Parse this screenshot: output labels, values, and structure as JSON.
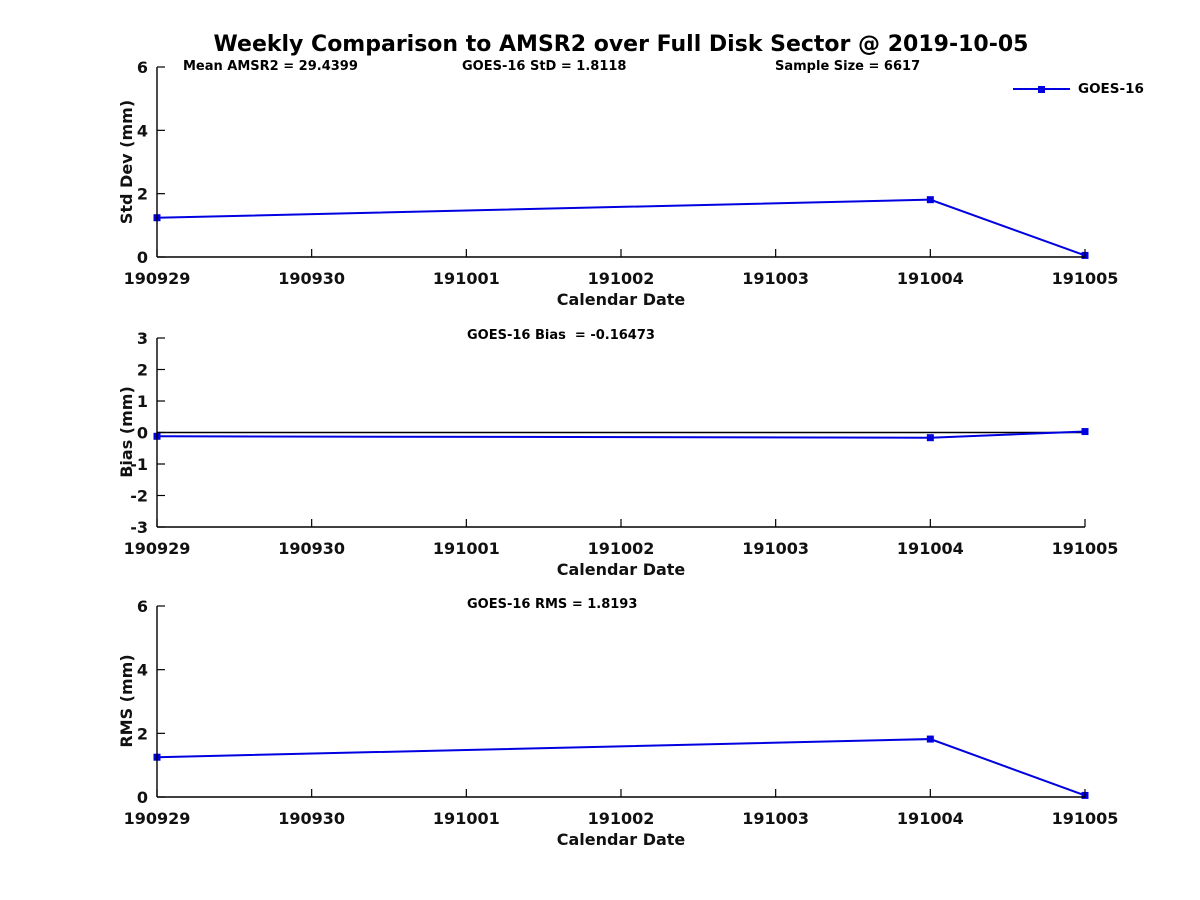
{
  "figure": {
    "background": "#ffffff",
    "accent_color": "#0000e0"
  },
  "legend": {
    "label": "GOES-16",
    "line_color": "#0000e0",
    "marker": "square",
    "position": "top-right"
  },
  "chart_data": [
    {
      "type": "line",
      "panel": "std-dev",
      "title": "Weekly Comparison to AMSR2 over Full Disk Sector @ 2019-10-05",
      "annotations": [
        "Mean AMSR2 = 29.4399",
        "GOES-16 StD = 1.8118",
        "Sample Size = 6617"
      ],
      "xlabel": "Calendar Date",
      "ylabel": "Std Dev (mm)",
      "x_ticks": [
        "190929",
        "190930",
        "191001",
        "191002",
        "191003",
        "191004",
        "191005"
      ],
      "y_ticks": [
        0,
        2,
        4,
        6
      ],
      "ylim": [
        0,
        6
      ],
      "grid": false,
      "zero_line": false,
      "series": [
        {
          "name": "GOES-16",
          "x": [
            "190929",
            "191004",
            "191005"
          ],
          "values": [
            1.24,
            1.81,
            0.05
          ],
          "color": "#0000e0",
          "marker": "square"
        }
      ]
    },
    {
      "type": "line",
      "panel": "bias",
      "title": "",
      "annotations": [
        "GOES-16 Bias  = -0.16473"
      ],
      "xlabel": "Calendar Date",
      "ylabel": "Bias (mm)",
      "x_ticks": [
        "190929",
        "190930",
        "191001",
        "191002",
        "191003",
        "191004",
        "191005"
      ],
      "y_ticks": [
        -3,
        -2,
        -1,
        0,
        1,
        2,
        3
      ],
      "ylim": [
        -3,
        3
      ],
      "grid": false,
      "zero_line": true,
      "series": [
        {
          "name": "GOES-16",
          "x": [
            "190929",
            "191004",
            "191005"
          ],
          "values": [
            -0.12,
            -0.165,
            0.03
          ],
          "color": "#0000e0",
          "marker": "square"
        }
      ]
    },
    {
      "type": "line",
      "panel": "rms",
      "title": "",
      "annotations": [
        "GOES-16 RMS = 1.8193"
      ],
      "xlabel": "Calendar Date",
      "ylabel": "RMS (mm)",
      "x_ticks": [
        "190929",
        "190930",
        "191001",
        "191002",
        "191003",
        "191004",
        "191005"
      ],
      "y_ticks": [
        0,
        2,
        4,
        6
      ],
      "ylim": [
        0,
        6
      ],
      "grid": false,
      "zero_line": false,
      "series": [
        {
          "name": "GOES-16",
          "x": [
            "190929",
            "191004",
            "191005"
          ],
          "values": [
            1.25,
            1.82,
            0.05
          ],
          "color": "#0000e0",
          "marker": "square"
        }
      ]
    }
  ]
}
